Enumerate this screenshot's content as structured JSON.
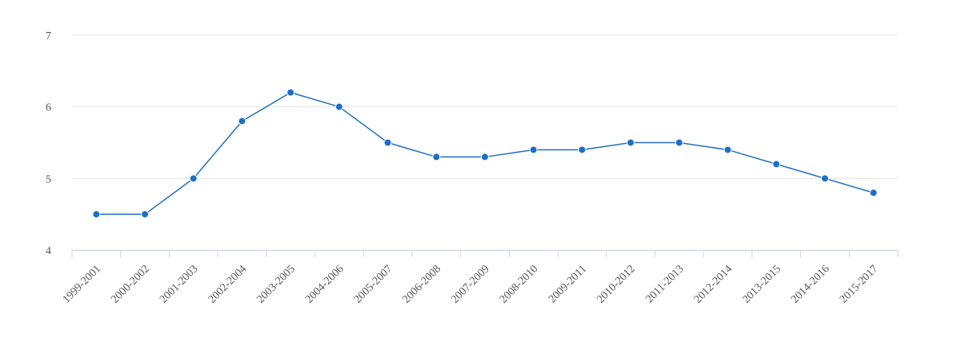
{
  "chart_data": {
    "type": "line",
    "categories": [
      "1999-2001",
      "2000-2002",
      "2001-2003",
      "2002-2004",
      "2003-2005",
      "2004-2006",
      "2005-2007",
      "2006-2008",
      "2007-2009",
      "2008-2010",
      "2009-2011",
      "2010-2012",
      "2011-2013",
      "2012-2014",
      "2013-2015",
      "2014-2016",
      "2015-2017"
    ],
    "values": [
      4.5,
      4.5,
      5.0,
      5.8,
      6.2,
      6.0,
      5.5,
      5.3,
      5.3,
      5.4,
      5.4,
      5.5,
      5.5,
      5.4,
      5.2,
      5.0,
      4.8
    ],
    "color": "#1f6fc5",
    "ylim": [
      4,
      7
    ],
    "yticks": [
      4,
      5,
      6,
      7
    ],
    "grid": true
  }
}
